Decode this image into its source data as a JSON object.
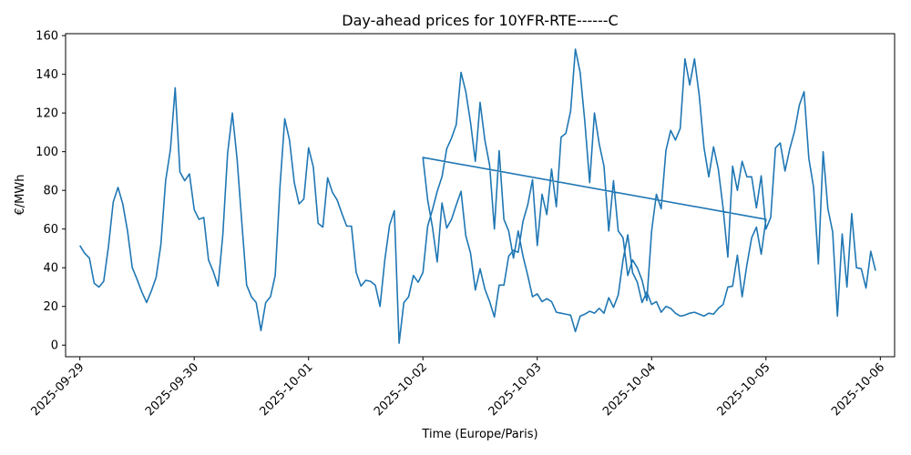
{
  "chart_data": {
    "type": "line",
    "title": "Day-ahead prices for 10YFR-RTE------C",
    "xlabel": "Time (Europe/Paris)",
    "ylabel": "€/MWh",
    "xlim": [
      "2025-09-28T21:00",
      "2025-10-06T03:00"
    ],
    "ylim": [
      -6,
      161
    ],
    "yticks": [
      0,
      20,
      40,
      60,
      80,
      100,
      120,
      140,
      160
    ],
    "xticks": [
      "2025-09-29",
      "2025-09-30",
      "2025-10-01",
      "2025-10-02",
      "2025-10-03",
      "2025-10-04",
      "2025-10-05",
      "2025-10-06"
    ],
    "grid": false,
    "legend": "none",
    "line_color": "#1f77b4",
    "series": [
      {
        "x": [
          "2025-09-29T00:00",
          "2025-09-29T01:00",
          "2025-09-29T02:00",
          "2025-09-29T03:00",
          "2025-09-29T04:00",
          "2025-09-29T05:00",
          "2025-09-29T06:00",
          "2025-09-29T07:00",
          "2025-09-29T08:00",
          "2025-09-29T09:00",
          "2025-09-29T10:00",
          "2025-09-29T11:00",
          "2025-09-29T12:00",
          "2025-09-29T13:00",
          "2025-09-29T14:00",
          "2025-09-29T15:00",
          "2025-09-29T16:00",
          "2025-09-29T17:00",
          "2025-09-29T18:00",
          "2025-09-29T19:00",
          "2025-09-29T20:00",
          "2025-09-29T21:00",
          "2025-09-29T22:00",
          "2025-09-29T23:00",
          "2025-09-30T00:00",
          "2025-09-30T01:00",
          "2025-09-30T02:00",
          "2025-09-30T03:00",
          "2025-09-30T04:00",
          "2025-09-30T05:00",
          "2025-09-30T06:00",
          "2025-09-30T07:00",
          "2025-09-30T08:00",
          "2025-09-30T09:00",
          "2025-09-30T10:00",
          "2025-09-30T11:00",
          "2025-09-30T12:00",
          "2025-09-30T13:00",
          "2025-09-30T14:00",
          "2025-09-30T15:00",
          "2025-09-30T16:00",
          "2025-09-30T17:00",
          "2025-09-30T18:00",
          "2025-09-30T19:00",
          "2025-09-30T20:00",
          "2025-09-30T21:00",
          "2025-09-30T22:00",
          "2025-09-30T23:00",
          "2025-10-01T00:00",
          "2025-10-01T01:00",
          "2025-10-01T02:00",
          "2025-10-01T03:00",
          "2025-10-01T04:00",
          "2025-10-01T05:00",
          "2025-10-01T06:00",
          "2025-10-01T07:00",
          "2025-10-01T08:00",
          "2025-10-01T09:00",
          "2025-10-01T10:00",
          "2025-10-01T11:00",
          "2025-10-01T12:00",
          "2025-10-01T13:00",
          "2025-10-01T14:00",
          "2025-10-01T15:00",
          "2025-10-01T16:00",
          "2025-10-01T17:00",
          "2025-10-01T18:00",
          "2025-10-01T19:00",
          "2025-10-01T20:00",
          "2025-10-01T21:00",
          "2025-10-01T22:00",
          "2025-10-01T23:00",
          "2025-10-02T00:00",
          "2025-10-02T01:00",
          "2025-10-02T02:00",
          "2025-10-02T03:00",
          "2025-10-02T04:00",
          "2025-10-02T05:00",
          "2025-10-02T06:00",
          "2025-10-02T07:00",
          "2025-10-02T08:00",
          "2025-10-02T09:00",
          "2025-10-02T10:00",
          "2025-10-02T11:00",
          "2025-10-02T12:00",
          "2025-10-02T13:00",
          "2025-10-02T14:00",
          "2025-10-02T15:00",
          "2025-10-02T16:00",
          "2025-10-02T17:00",
          "2025-10-02T18:00",
          "2025-10-02T19:00",
          "2025-10-02T20:00",
          "2025-10-02T21:00",
          "2025-10-02T22:00",
          "2025-10-02T23:00",
          "2025-10-03T00:00",
          "2025-10-03T01:00",
          "2025-10-03T02:00",
          "2025-10-03T03:00",
          "2025-10-03T04:00",
          "2025-10-03T05:00",
          "2025-10-03T06:00",
          "2025-10-03T07:00",
          "2025-10-03T08:00",
          "2025-10-03T09:00",
          "2025-10-03T10:00",
          "2025-10-03T11:00",
          "2025-10-03T12:00",
          "2025-10-03T13:00",
          "2025-10-03T14:00",
          "2025-10-03T15:00",
          "2025-10-03T16:00",
          "2025-10-03T17:00",
          "2025-10-03T18:00",
          "2025-10-03T19:00",
          "2025-10-03T20:00",
          "2025-10-03T21:00",
          "2025-10-03T22:00",
          "2025-10-03T23:00",
          "2025-10-04T00:00",
          "2025-10-04T01:00",
          "2025-10-04T02:00",
          "2025-10-04T03:00",
          "2025-10-04T04:00",
          "2025-10-04T05:00",
          "2025-10-04T06:00",
          "2025-10-04T07:00",
          "2025-10-04T08:00",
          "2025-10-04T09:00",
          "2025-10-04T10:00",
          "2025-10-04T11:00",
          "2025-10-04T12:00",
          "2025-10-04T13:00",
          "2025-10-04T14:00",
          "2025-10-04T15:00",
          "2025-10-04T16:00",
          "2025-10-04T17:00",
          "2025-10-04T18:00",
          "2025-10-04T19:00",
          "2025-10-04T20:00",
          "2025-10-04T21:00",
          "2025-10-04T22:00",
          "2025-10-04T23:00",
          "2025-10-05T00:00",
          "2025-10-02T00:00",
          "2025-10-02T01:00",
          "2025-10-02T02:00",
          "2025-10-02T03:00",
          "2025-10-02T04:00",
          "2025-10-02T05:00",
          "2025-10-02T06:00",
          "2025-10-02T07:00",
          "2025-10-02T08:00",
          "2025-10-02T09:00",
          "2025-10-02T10:00",
          "2025-10-02T11:00",
          "2025-10-02T12:00",
          "2025-10-02T13:00",
          "2025-10-02T14:00",
          "2025-10-02T15:00",
          "2025-10-02T16:00",
          "2025-10-02T17:00",
          "2025-10-02T18:00",
          "2025-10-02T19:00",
          "2025-10-02T20:00",
          "2025-10-02T21:00",
          "2025-10-02T22:00",
          "2025-10-02T23:00",
          "2025-10-03T00:00",
          "2025-10-03T01:00",
          "2025-10-03T02:00",
          "2025-10-03T03:00",
          "2025-10-03T04:00",
          "2025-10-03T05:00",
          "2025-10-03T06:00",
          "2025-10-03T07:00",
          "2025-10-03T08:00",
          "2025-10-03T09:00",
          "2025-10-03T10:00",
          "2025-10-03T11:00",
          "2025-10-03T12:00",
          "2025-10-03T13:00",
          "2025-10-03T14:00",
          "2025-10-03T15:00",
          "2025-10-03T16:00",
          "2025-10-03T17:00",
          "2025-10-03T18:00",
          "2025-10-03T19:00",
          "2025-10-03T20:00",
          "2025-10-03T21:00",
          "2025-10-03T22:00",
          "2025-10-03T23:00",
          "2025-10-04T00:00",
          "2025-10-04T01:00",
          "2025-10-04T02:00",
          "2025-10-04T03:00",
          "2025-10-04T04:00",
          "2025-10-04T05:00",
          "2025-10-04T06:00",
          "2025-10-04T07:00",
          "2025-10-04T08:00",
          "2025-10-04T09:00",
          "2025-10-04T10:00",
          "2025-10-04T11:00",
          "2025-10-04T12:00",
          "2025-10-04T13:00",
          "2025-10-04T14:00",
          "2025-10-04T15:00",
          "2025-10-04T16:00",
          "2025-10-04T17:00",
          "2025-10-04T18:00",
          "2025-10-04T19:00",
          "2025-10-04T20:00",
          "2025-10-04T21:00",
          "2025-10-04T22:00",
          "2025-10-04T23:00",
          "2025-10-05T00:00",
          "2025-10-05T01:00",
          "2025-10-05T02:00",
          "2025-10-05T03:00",
          "2025-10-05T04:00",
          "2025-10-05T05:00",
          "2025-10-05T06:00",
          "2025-10-05T07:00",
          "2025-10-05T08:00",
          "2025-10-05T09:00",
          "2025-10-05T10:00",
          "2025-10-05T11:00",
          "2025-10-05T12:00",
          "2025-10-05T13:00",
          "2025-10-05T14:00",
          "2025-10-05T15:00",
          "2025-10-05T16:00",
          "2025-10-05T17:00",
          "2025-10-05T18:00",
          "2025-10-05T19:00",
          "2025-10-05T20:00",
          "2025-10-05T21:00",
          "2025-10-05T22:00",
          "2025-10-05T23:00"
        ],
        "y": [
          51.5,
          47.5,
          45,
          32,
          30,
          33,
          51,
          74,
          81.5,
          73,
          59,
          40,
          34,
          27.5,
          22,
          28,
          35,
          52,
          85,
          101,
          133,
          89.5,
          85,
          88.5,
          70,
          65,
          66,
          44,
          38,
          30.5,
          57,
          99,
          120,
          96,
          63,
          31,
          25,
          22,
          7.5,
          22,
          25,
          36,
          82,
          117,
          106,
          84,
          73,
          75.5,
          102,
          92,
          63,
          61,
          86.5,
          79,
          75,
          68,
          61.5,
          61.5,
          37.5,
          30.5,
          33.5,
          33,
          31,
          20,
          44,
          62,
          69.5,
          1,
          22,
          25,
          36,
          32.5,
          37.5,
          61.5,
          70,
          79.5,
          87,
          101.5,
          107,
          114,
          141,
          131,
          115,
          95,
          125.5,
          106,
          93,
          60,
          100.5,
          65,
          59,
          45,
          59,
          46,
          36,
          25,
          26.5,
          22.5,
          24,
          22.5,
          17,
          16.5,
          16,
          15.5,
          7,
          15,
          16,
          17.5,
          16.5,
          19,
          16.5,
          24.5,
          19.5,
          26,
          44,
          57,
          37.5,
          32.5,
          22,
          27.5,
          21,
          22.5,
          17,
          20,
          19,
          16.5,
          15,
          15.5,
          16.5,
          17,
          16,
          15,
          16.5,
          16,
          19,
          21,
          30,
          30.5,
          46.5,
          25,
          41.5,
          55.5,
          61,
          47,
          65,
          97,
          75,
          61,
          43,
          73.5,
          60.5,
          65,
          72.5,
          79.5,
          56.5,
          47.5,
          28.5,
          39.5,
          29,
          22.5,
          14.5,
          31,
          31,
          46,
          49,
          48,
          64,
          72.5,
          85.5,
          51.5,
          78,
          67.5,
          91,
          71.5,
          107.5,
          109.5,
          121,
          153,
          141,
          115,
          84,
          120,
          104,
          92.5,
          59,
          85,
          59,
          55.5,
          36,
          44,
          40,
          33.5,
          23,
          59,
          78,
          70.5,
          100.5,
          111,
          106,
          112,
          148,
          134.5,
          148,
          129,
          102,
          87,
          102.5,
          91,
          71,
          45.5,
          92.5,
          80,
          95,
          87,
          87,
          71,
          87.5,
          60,
          66,
          102,
          104.5,
          90,
          101.5,
          110.5,
          124,
          131,
          96.5,
          81.5,
          42,
          100,
          70.5,
          58.5,
          15,
          57.5,
          30,
          68,
          40,
          39.5,
          29.5,
          48.5,
          38.5
        ]
      }
    ]
  }
}
